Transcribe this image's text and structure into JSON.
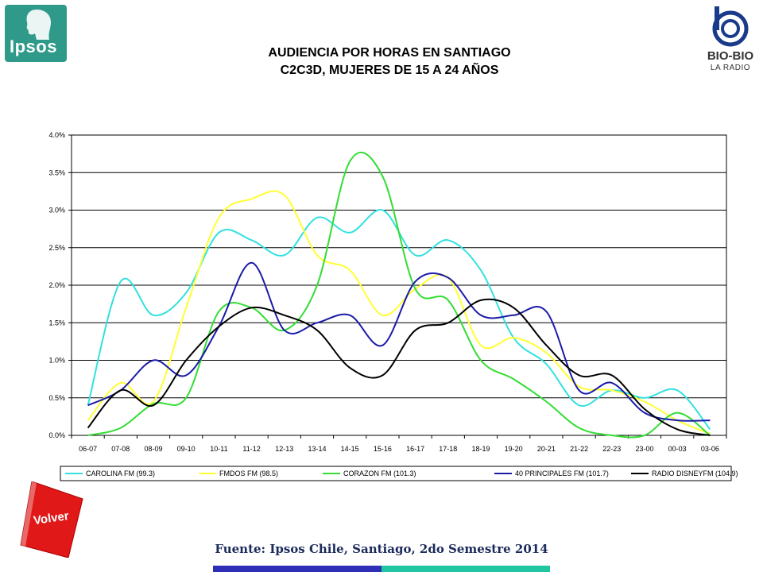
{
  "header": {
    "title_line1": "AUDIENCIA POR HORAS EN SANTIAGO",
    "title_line2": "C2C3D, MUJERES DE 15 A 24 AÑOS",
    "left_logo_text": "Ipsos",
    "right_logo_name": "BIO-BIO",
    "right_logo_sub": "LA RADIO"
  },
  "footer": {
    "source": "Fuente: Ipsos Chile, Santiago, 2do Semestre 2014",
    "back_button": "Volver"
  },
  "colors": {
    "ipsos": "#2f9a8a",
    "volver": "#e01818",
    "bar_blue": "#2e2fb6",
    "bar_teal": "#1fc6a0"
  },
  "chart_data": {
    "type": "line",
    "categories": [
      "06-07",
      "07-08",
      "08-09",
      "09-10",
      "10-11",
      "11-12",
      "12-13",
      "13-14",
      "14-15",
      "15-16",
      "16-17",
      "17-18",
      "18-19",
      "19-20",
      "20-21",
      "21-22",
      "22-23",
      "23-00",
      "00-03",
      "03-06"
    ],
    "y_ticks": [
      "0.0%",
      "0.5%",
      "1.0%",
      "1.5%",
      "2.0%",
      "2.5%",
      "3.0%",
      "3.5%",
      "4.0%"
    ],
    "ylim": [
      0,
      4.0
    ],
    "grid": true,
    "legend_position": "bottom",
    "series": [
      {
        "name": "CAROLINA FM (99.3)",
        "color": "#33e0e0",
        "values": [
          0.4,
          2.05,
          1.6,
          1.9,
          2.7,
          2.6,
          2.4,
          2.9,
          2.7,
          3.0,
          2.4,
          2.6,
          2.2,
          1.3,
          0.95,
          0.4,
          0.6,
          0.5,
          0.6,
          0.08
        ]
      },
      {
        "name": "FMDOS FM (98.5)",
        "color": "#ffff33",
        "values": [
          0.2,
          0.7,
          0.45,
          1.7,
          2.9,
          3.15,
          3.2,
          2.4,
          2.2,
          1.6,
          1.95,
          2.1,
          1.2,
          1.3,
          1.1,
          0.65,
          0.6,
          0.45,
          0.2,
          0.02
        ]
      },
      {
        "name": "CORAZON FM (101.3)",
        "color": "#33dd33",
        "values": [
          0.0,
          0.1,
          0.42,
          0.5,
          1.65,
          1.7,
          1.4,
          2.0,
          3.65,
          3.45,
          1.95,
          1.8,
          1.0,
          0.75,
          0.45,
          0.1,
          0.0,
          0.0,
          0.3,
          0.0
        ]
      },
      {
        "name": "40 PRINCIPALES FM (101.7)",
        "color": "#1a1aa8",
        "values": [
          0.4,
          0.6,
          1.0,
          0.8,
          1.45,
          2.3,
          1.4,
          1.5,
          1.6,
          1.2,
          2.05,
          2.1,
          1.6,
          1.6,
          1.65,
          0.6,
          0.7,
          0.3,
          0.2,
          0.2
        ]
      },
      {
        "name": "RADIO DISNEYFM (104.9)",
        "color": "#000000",
        "values": [
          0.1,
          0.6,
          0.4,
          1.0,
          1.45,
          1.7,
          1.6,
          1.4,
          0.9,
          0.8,
          1.4,
          1.5,
          1.8,
          1.7,
          1.2,
          0.8,
          0.8,
          0.35,
          0.08,
          0.0
        ]
      }
    ]
  }
}
